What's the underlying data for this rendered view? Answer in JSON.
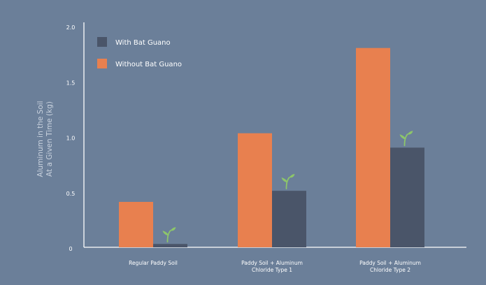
{
  "chart_data": {
    "type": "bar",
    "title": "",
    "xlabel": "",
    "ylabel_lines": [
      "Aluminum in the Soil",
      "At a Given Time (kg)"
    ],
    "ylim": [
      0,
      2.0
    ],
    "yticks": [
      "0",
      "0.5",
      "1.0",
      "1.5",
      "2.0"
    ],
    "categories": [
      [
        "Regular Paddy Soil"
      ],
      [
        "Paddy Soil + Aluminum",
        "Chloride Type 1"
      ],
      [
        "Paddy Soil + Aluminum",
        "Chloride Type 2"
      ]
    ],
    "series": [
      {
        "name": "Without Bat Guano",
        "color": "#e8804f",
        "values": [
          0.41,
          1.03,
          1.8
        ]
      },
      {
        "name": "With Bat Guano",
        "color": "#4a5569",
        "values": [
          0.03,
          0.51,
          0.9
        ]
      }
    ],
    "legend_order": [
      "With Bat Guano",
      "Without Bat Guano"
    ],
    "legend_placement": "top-left",
    "grid": false,
    "annotation_icon": "sprout-icon",
    "annotation_color": "#8dc66a"
  }
}
